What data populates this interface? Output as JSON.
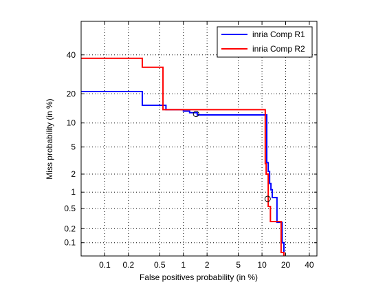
{
  "chart_data": {
    "type": "line",
    "title": "",
    "xlabel": "False positives probability (in %)",
    "ylabel": "Miss probability (in %)",
    "x_scale": "log",
    "y_scale": "probit",
    "xlim": [
      0.05,
      50
    ],
    "ylim": [
      0.05,
      60
    ],
    "xticks": [
      0.1,
      0.2,
      0.5,
      1,
      2,
      5,
      10,
      20,
      40
    ],
    "xtick_labels": [
      "0.1",
      "0.2",
      "0.5",
      "1",
      "2",
      "5",
      "10",
      "20",
      "40"
    ],
    "yticks": [
      0.1,
      0.2,
      0.5,
      1,
      2,
      5,
      10,
      20,
      40
    ],
    "ytick_labels": [
      "0.1",
      "0.2",
      "0.5",
      "1",
      "2",
      "5",
      "10",
      "20",
      "40"
    ],
    "grid": true,
    "legend_position": "top-right",
    "series": [
      {
        "name": "inria Comp R1",
        "color": "#0000ff",
        "x": [
          0.05,
          0.3,
          0.3,
          0.6,
          0.6,
          1.0,
          1.0,
          1.2,
          1.2,
          1.5,
          1.5,
          11.5,
          11.5,
          12.0,
          12.0,
          12.5,
          12.5,
          13.0,
          13.0,
          13.5,
          13.5,
          15.5,
          15.5,
          18.0,
          18.0,
          19.0,
          19.0
        ],
        "y": [
          21,
          21,
          15.5,
          15.5,
          14,
          14,
          13.5,
          13.5,
          13,
          13,
          12.3,
          12.3,
          3.0,
          3.0,
          2.2,
          2.2,
          1.4,
          1.4,
          1.1,
          1.1,
          0.8,
          0.8,
          0.27,
          0.27,
          0.1,
          0.1,
          0.05
        ]
      },
      {
        "name": "inria Comp R2",
        "color": "#ff0000",
        "x": [
          0.05,
          0.3,
          0.3,
          0.55,
          0.55,
          11.0,
          11.0,
          11.3,
          11.3,
          12.0,
          12.0,
          12.8,
          12.8,
          17.5,
          17.5,
          19.0,
          19.0
        ],
        "y": [
          38,
          38,
          33,
          33,
          14,
          14,
          2.9,
          2.9,
          2.0,
          2.0,
          0.55,
          0.55,
          0.28,
          0.28,
          0.06,
          0.06,
          0.05
        ]
      }
    ],
    "markers": [
      {
        "series": "inria Comp R1",
        "x": 1.45,
        "y": 12.6
      },
      {
        "series": "inria Comp R2",
        "x": 11.8,
        "y": 0.76
      }
    ]
  }
}
